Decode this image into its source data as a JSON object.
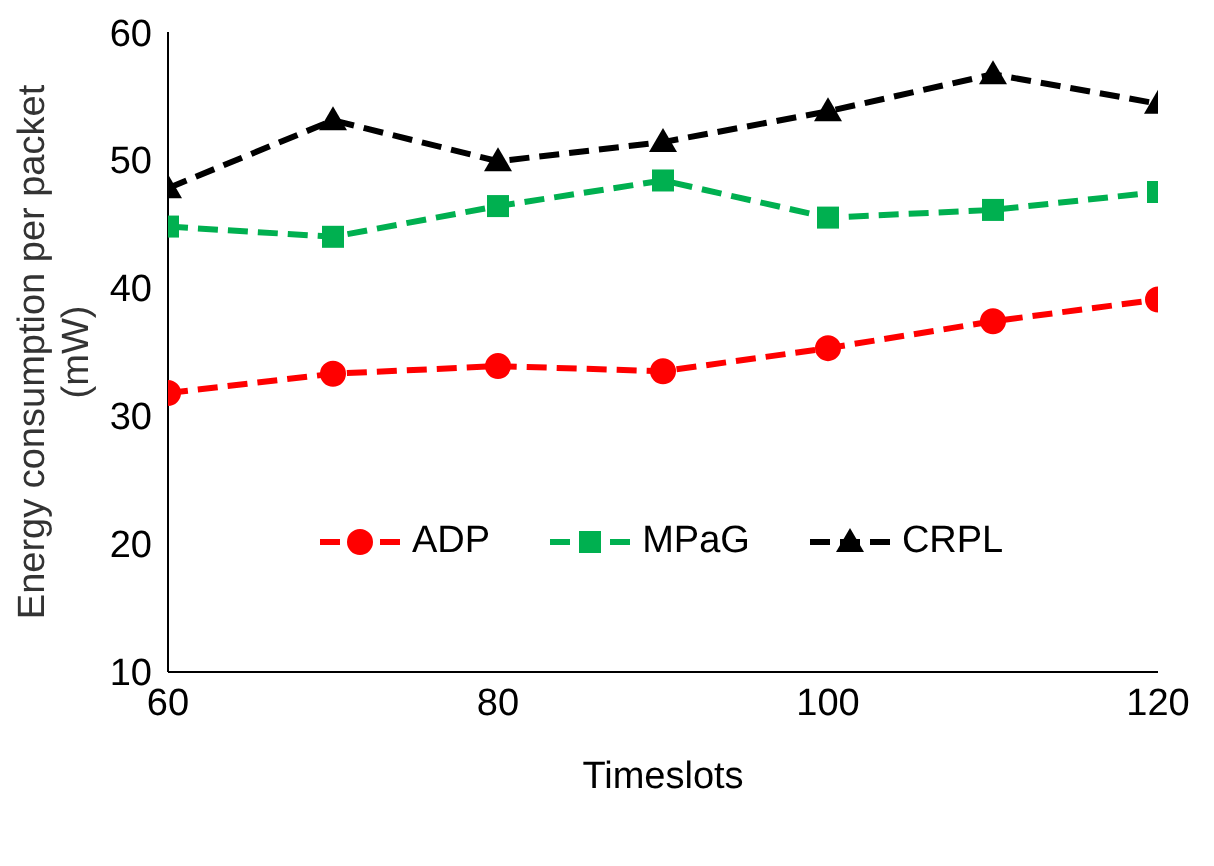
{
  "chart_data": {
    "type": "line",
    "xlabel": "Timeslots",
    "ylabel": "Energy consumption per packet (mW)",
    "x": [
      60,
      70,
      80,
      90,
      100,
      110,
      120
    ],
    "series": [
      {
        "name": "ADP",
        "color": "#ff0000",
        "marker": "circle",
        "line_style": "dashed",
        "values": [
          31.8,
          33.3,
          33.9,
          33.5,
          35.3,
          37.4,
          39.1
        ]
      },
      {
        "name": "MPaG",
        "color": "#00b050",
        "marker": "square",
        "line_style": "dashed",
        "values": [
          44.8,
          44.0,
          46.4,
          48.4,
          45.5,
          46.1,
          47.5
        ]
      },
      {
        "name": "CRPL",
        "color": "#000000",
        "marker": "triangle",
        "line_style": "dashed",
        "values": [
          47.8,
          53.1,
          49.9,
          51.4,
          53.8,
          56.7,
          54.4
        ]
      }
    ],
    "xlim": [
      60,
      120
    ],
    "xticks": [
      60,
      80,
      100,
      120
    ],
    "ylim": [
      10,
      60
    ],
    "yticks": [
      10,
      20,
      30,
      40,
      50,
      60
    ],
    "grid": false,
    "legend": "bottom"
  }
}
